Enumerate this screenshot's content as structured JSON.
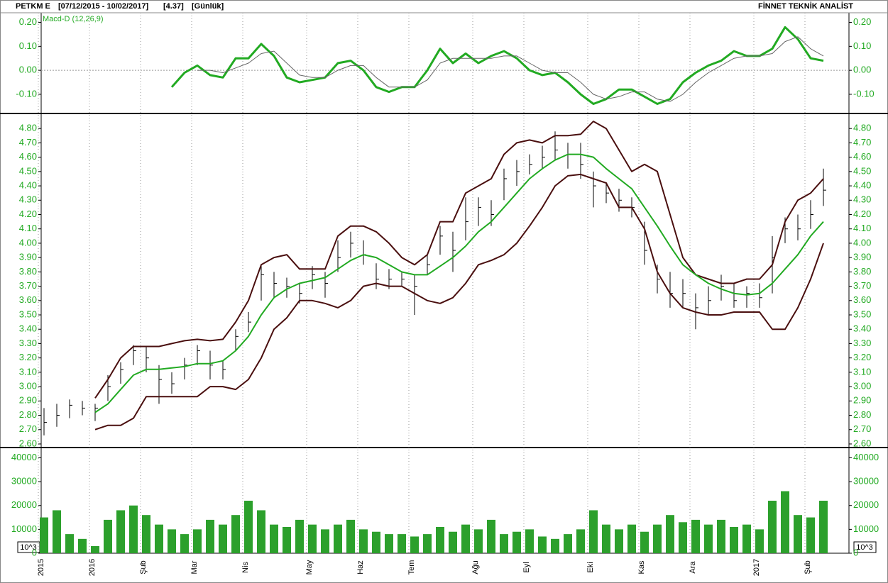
{
  "header": {
    "symbol": "PETKM E",
    "range": "[07/12/2015 - 10/02/2017]",
    "last": "[4.37]",
    "period": "[Günlük]",
    "brand": "FİNNET TEKNİK ANALİST"
  },
  "chart_data": [
    {
      "type": "line",
      "title": "Macd-D (12,26,9)",
      "ylim": [
        -0.18,
        0.24
      ],
      "yticks": [
        {
          "value": 0.2,
          "label": "0.20"
        },
        {
          "value": 0.1,
          "label": "0.10"
        },
        {
          "value": 0,
          "label": "0.00"
        },
        {
          "value": -0.1,
          "label": "-0.10"
        }
      ],
      "reference_line": 0,
      "series": [
        {
          "color": "#22aa22",
          "width": 3,
          "values": [
            null,
            null,
            null,
            null,
            null,
            null,
            null,
            null,
            null,
            null,
            -0.07,
            -0.01,
            0.02,
            -0.02,
            -0.03,
            0.05,
            0.05,
            0.11,
            0.06,
            -0.03,
            -0.05,
            -0.04,
            -0.03,
            0.03,
            0.04,
            0.0,
            -0.07,
            -0.09,
            -0.07,
            -0.07,
            0.0,
            0.09,
            0.03,
            0.07,
            0.03,
            0.06,
            0.08,
            0.05,
            0.0,
            -0.02,
            -0.01,
            -0.05,
            -0.1,
            -0.14,
            -0.12,
            -0.08,
            -0.08,
            -0.11,
            -0.14,
            -0.12,
            -0.05,
            -0.01,
            0.02,
            0.04,
            0.08,
            0.06,
            0.06,
            0.09,
            0.18,
            0.13,
            0.05,
            0.04
          ]
        },
        {
          "color": "#666666",
          "width": 1,
          "values": [
            null,
            null,
            null,
            null,
            null,
            null,
            null,
            null,
            null,
            null,
            null,
            null,
            0.0,
            0.0,
            -0.01,
            0.01,
            0.03,
            0.07,
            0.08,
            0.03,
            -0.02,
            -0.03,
            -0.03,
            0.0,
            0.02,
            0.02,
            -0.03,
            -0.07,
            -0.07,
            -0.07,
            -0.04,
            0.03,
            0.05,
            0.05,
            0.05,
            0.05,
            0.06,
            0.06,
            0.03,
            0.0,
            -0.01,
            -0.01,
            -0.05,
            -0.1,
            -0.12,
            -0.11,
            -0.09,
            -0.09,
            -0.12,
            -0.13,
            -0.1,
            -0.05,
            -0.01,
            0.02,
            0.05,
            0.06,
            0.06,
            0.07,
            0.12,
            0.14,
            0.09,
            0.06
          ]
        }
      ]
    },
    {
      "type": "ohlc",
      "ylim": [
        2.58,
        4.89
      ],
      "bar_color": "#000000",
      "yticks": [
        {
          "value": 2.6,
          "label": "2.60"
        },
        {
          "value": 2.7,
          "label": "2.70"
        },
        {
          "value": 2.8,
          "label": "2.80"
        },
        {
          "value": 2.9,
          "label": "2.90"
        },
        {
          "value": 3.0,
          "label": "3.00"
        },
        {
          "value": 3.1,
          "label": "3.10"
        },
        {
          "value": 3.2,
          "label": "3.20"
        },
        {
          "value": 3.3,
          "label": "3.30"
        },
        {
          "value": 3.4,
          "label": "3.40"
        },
        {
          "value": 3.5,
          "label": "3.50"
        },
        {
          "value": 3.6,
          "label": "3.60"
        },
        {
          "value": 3.7,
          "label": "3.70"
        },
        {
          "value": 3.8,
          "label": "3.80"
        },
        {
          "value": 3.9,
          "label": "3.90"
        },
        {
          "value": 4.0,
          "label": "4.00"
        },
        {
          "value": 4.1,
          "label": "4.10"
        },
        {
          "value": 4.2,
          "label": "4.20"
        },
        {
          "value": 4.3,
          "label": "4.30"
        },
        {
          "value": 4.4,
          "label": "4.40"
        },
        {
          "value": 4.5,
          "label": "4.50"
        },
        {
          "value": 4.6,
          "label": "4.60"
        },
        {
          "value": 4.7,
          "label": "4.70"
        },
        {
          "value": 4.8,
          "label": "4.80"
        }
      ],
      "high": [
        2.85,
        2.88,
        2.91,
        2.9,
        2.88,
        3.08,
        3.17,
        3.29,
        3.28,
        3.15,
        3.1,
        3.2,
        3.29,
        3.25,
        3.18,
        3.4,
        3.52,
        3.85,
        3.8,
        3.76,
        3.72,
        3.84,
        3.8,
        4.02,
        4.08,
        4.02,
        3.86,
        3.82,
        3.8,
        3.78,
        3.92,
        4.12,
        4.08,
        4.32,
        4.32,
        4.3,
        4.52,
        4.58,
        4.62,
        4.68,
        4.78,
        4.7,
        4.7,
        4.5,
        4.42,
        4.38,
        4.32,
        4.15,
        3.85,
        3.8,
        3.75,
        3.65,
        3.7,
        3.78,
        3.72,
        3.7,
        3.72,
        4.05,
        4.18,
        4.2,
        4.3,
        4.52
      ],
      "low": [
        2.66,
        2.72,
        2.78,
        2.8,
        2.76,
        2.9,
        3.02,
        3.15,
        3.1,
        2.88,
        2.95,
        3.05,
        3.15,
        3.05,
        3.05,
        3.25,
        3.38,
        3.6,
        3.62,
        3.62,
        3.58,
        3.68,
        3.62,
        3.8,
        3.9,
        3.85,
        3.68,
        3.68,
        3.7,
        3.5,
        3.78,
        3.92,
        3.8,
        4.02,
        4.12,
        4.12,
        4.3,
        4.4,
        4.48,
        4.52,
        4.58,
        4.52,
        4.45,
        4.25,
        4.28,
        4.22,
        4.18,
        3.85,
        3.65,
        3.55,
        3.55,
        3.4,
        3.5,
        3.6,
        3.55,
        3.55,
        3.55,
        3.65,
        4.0,
        4.02,
        4.1,
        4.26
      ],
      "close": [
        2.75,
        2.8,
        2.87,
        2.85,
        2.85,
        3.0,
        3.12,
        3.25,
        3.2,
        3.05,
        3.02,
        3.15,
        3.25,
        3.15,
        3.12,
        3.35,
        3.45,
        3.78,
        3.72,
        3.7,
        3.65,
        3.78,
        3.72,
        3.9,
        4.0,
        3.92,
        3.75,
        3.75,
        3.75,
        3.7,
        3.85,
        4.05,
        3.95,
        4.15,
        4.25,
        4.2,
        4.45,
        4.5,
        4.55,
        4.6,
        4.65,
        4.62,
        4.55,
        4.4,
        4.35,
        4.3,
        4.25,
        3.95,
        3.75,
        3.65,
        3.65,
        3.55,
        3.6,
        3.7,
        3.6,
        3.65,
        3.62,
        3.9,
        4.1,
        4.1,
        4.2,
        4.37
      ],
      "series": [
        {
          "color": "#4a0f0f",
          "width": 2,
          "values": [
            null,
            null,
            null,
            null,
            2.92,
            3.05,
            3.2,
            3.28,
            3.28,
            3.28,
            3.3,
            3.32,
            3.33,
            3.32,
            3.33,
            3.45,
            3.6,
            3.85,
            3.9,
            3.92,
            3.82,
            3.82,
            3.82,
            4.05,
            4.12,
            4.12,
            4.08,
            4.0,
            3.9,
            3.85,
            3.92,
            4.15,
            4.15,
            4.35,
            4.4,
            4.45,
            4.62,
            4.7,
            4.72,
            4.7,
            4.75,
            4.75,
            4.76,
            4.85,
            4.8,
            4.65,
            4.5,
            4.55,
            4.5,
            4.2,
            3.9,
            3.78,
            3.75,
            3.72,
            3.72,
            3.75,
            3.75,
            3.85,
            4.15,
            4.3,
            4.35,
            4.45
          ]
        },
        {
          "color": "#22aa22",
          "width": 2,
          "values": [
            null,
            null,
            null,
            null,
            2.82,
            2.88,
            2.98,
            3.08,
            3.12,
            3.12,
            3.13,
            3.14,
            3.16,
            3.16,
            3.18,
            3.25,
            3.35,
            3.5,
            3.62,
            3.68,
            3.72,
            3.74,
            3.76,
            3.82,
            3.88,
            3.92,
            3.9,
            3.85,
            3.8,
            3.78,
            3.78,
            3.84,
            3.9,
            3.98,
            4.08,
            4.15,
            4.25,
            4.35,
            4.45,
            4.52,
            4.58,
            4.62,
            4.62,
            4.6,
            4.52,
            4.45,
            4.38,
            4.25,
            4.12,
            3.98,
            3.85,
            3.78,
            3.72,
            3.68,
            3.65,
            3.64,
            3.65,
            3.72,
            3.82,
            3.92,
            4.05,
            4.15
          ]
        },
        {
          "color": "#4a0f0f",
          "width": 2,
          "values": [
            null,
            null,
            null,
            null,
            2.7,
            2.73,
            2.73,
            2.78,
            2.93,
            2.93,
            2.93,
            2.93,
            2.93,
            3.0,
            3.0,
            2.98,
            3.05,
            3.2,
            3.4,
            3.48,
            3.6,
            3.6,
            3.58,
            3.55,
            3.6,
            3.7,
            3.72,
            3.7,
            3.7,
            3.65,
            3.6,
            3.58,
            3.62,
            3.72,
            3.85,
            3.88,
            3.92,
            4.0,
            4.12,
            4.25,
            4.4,
            4.47,
            4.48,
            4.45,
            4.42,
            4.25,
            4.25,
            4.1,
            3.8,
            3.65,
            3.55,
            3.52,
            3.5,
            3.5,
            3.52,
            3.52,
            3.52,
            3.4,
            3.4,
            3.55,
            3.75,
            4.0
          ]
        }
      ]
    },
    {
      "type": "bar",
      "ylim": [
        0,
        44000
      ],
      "yticks": [
        0,
        10000,
        20000,
        30000,
        40000
      ],
      "unit": "10^3",
      "color": "#2ca02c",
      "categories": [
        "2015",
        null,
        null,
        null,
        "2016",
        null,
        null,
        null,
        "Şub",
        null,
        null,
        null,
        "Mar",
        null,
        null,
        null,
        "Nis",
        null,
        null,
        null,
        null,
        "May",
        null,
        null,
        null,
        "Haz",
        null,
        null,
        null,
        "Tem",
        null,
        null,
        null,
        null,
        "Ağu",
        null,
        null,
        null,
        "Eyl",
        null,
        null,
        null,
        null,
        "Eki",
        null,
        null,
        null,
        "Kas",
        null,
        null,
        null,
        "Ara",
        null,
        null,
        null,
        null,
        "2017",
        null,
        null,
        null,
        "Şub",
        null
      ],
      "values": [
        15000,
        18000,
        8000,
        6000,
        3000,
        14000,
        18000,
        20000,
        16000,
        12000,
        10000,
        8000,
        10000,
        14000,
        12000,
        16000,
        22000,
        18000,
        12000,
        11000,
        14000,
        12000,
        10000,
        12000,
        14000,
        10000,
        9000,
        8000,
        8000,
        7000,
        8000,
        11000,
        9000,
        12000,
        10000,
        14000,
        8000,
        9000,
        10000,
        7000,
        6000,
        8000,
        10000,
        18000,
        12000,
        10000,
        12000,
        9000,
        12000,
        16000,
        13000,
        14000,
        12000,
        14000,
        11000,
        12000,
        10000,
        22000,
        26000,
        16000,
        15000,
        22000
      ]
    }
  ]
}
